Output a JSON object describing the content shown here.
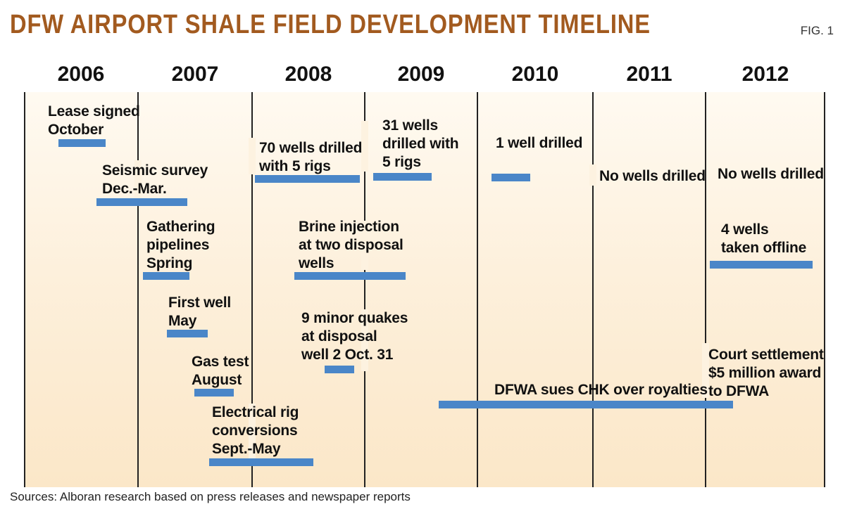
{
  "title": "DFW AIRPORT SHALE FIELD DEVELOPMENT TIMELINE",
  "fig_label": "FIG. 1",
  "years": [
    "2006",
    "2007",
    "2008",
    "2009",
    "2010",
    "2011",
    "2012"
  ],
  "events": [
    {
      "id": "lease",
      "label": "Lease signed\nOctober"
    },
    {
      "id": "seismic",
      "label": "Seismic survey\nDec.-Mar."
    },
    {
      "id": "gathering",
      "label": "Gathering\npipelines\nSpring"
    },
    {
      "id": "first-well",
      "label": "First well\nMay"
    },
    {
      "id": "gas-test",
      "label": "Gas test\nAugust"
    },
    {
      "id": "electrical",
      "label": "Electrical rig\nconversions\nSept.-May"
    },
    {
      "id": "wells-70",
      "label": "70 wells drilled\nwith 5 rigs"
    },
    {
      "id": "brine",
      "label": "Brine injection\nat two disposal\nwells"
    },
    {
      "id": "quakes",
      "label": "9 minor quakes\nat disposal\nwell 2 Oct. 31"
    },
    {
      "id": "wells-31",
      "label": "31 wells\ndrilled with\n5 rigs"
    },
    {
      "id": "well-1",
      "label": "1 well drilled"
    },
    {
      "id": "no-wells-2011",
      "label": "No wells drilled"
    },
    {
      "id": "no-wells-2012",
      "label": "No wells drilled"
    },
    {
      "id": "offline",
      "label": "4 wells\ntaken offline"
    },
    {
      "id": "lawsuit",
      "label": "DFWA sues CHK over royalties"
    },
    {
      "id": "settlement",
      "label": "Court settlement\n$5 million award\nto DFWA"
    }
  ],
  "colors": {
    "title": "#a25a1f",
    "bar": "#4a86c8",
    "panel_top": "#fffaf1",
    "panel_bottom": "#fbe7c8",
    "divider": "#222222"
  },
  "source": "Sources: Alboran research based on press releases and newspaper reports"
}
